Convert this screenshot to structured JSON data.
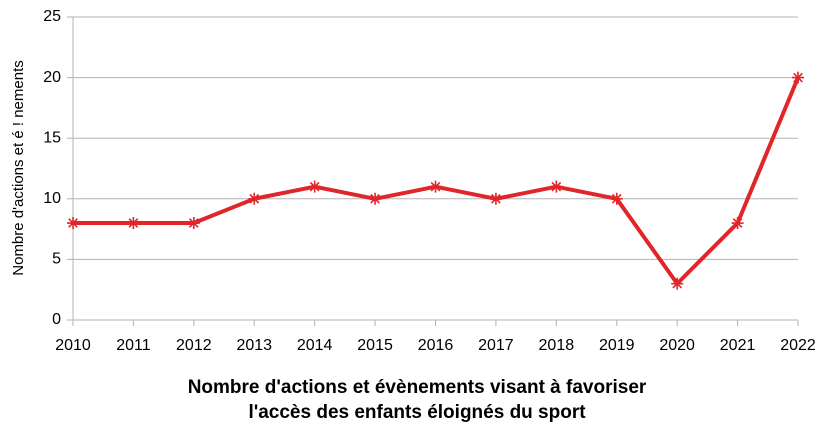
{
  "chart_data": {
    "type": "line",
    "title": [
      "Nombre d'actions et évènements visant à favoriser",
      "l'accès des enfants éloignés du sport"
    ],
    "y_label": "Nombre d'actions et é  ! nements",
    "x": [
      2010,
      2011,
      2012,
      2013,
      2014,
      2015,
      2016,
      2017,
      2018,
      2019,
      2020,
      2021,
      2022
    ],
    "series": [
      {
        "name": null,
        "color": "#e0262a",
        "values": [
          8,
          8,
          8,
          10,
          11,
          10,
          11,
          10,
          11,
          10,
          3,
          8,
          20
        ]
      }
    ],
    "xlim": [
      2010,
      2022
    ],
    "xticks": [
      2010,
      2011,
      2012,
      2013,
      2014,
      2015,
      2016,
      2017,
      2018,
      2019,
      2020,
      2021,
      2022
    ],
    "ylim": [
      0,
      25
    ],
    "yticks": [
      0,
      5,
      10,
      15,
      20,
      25
    ],
    "grid": true
  }
}
